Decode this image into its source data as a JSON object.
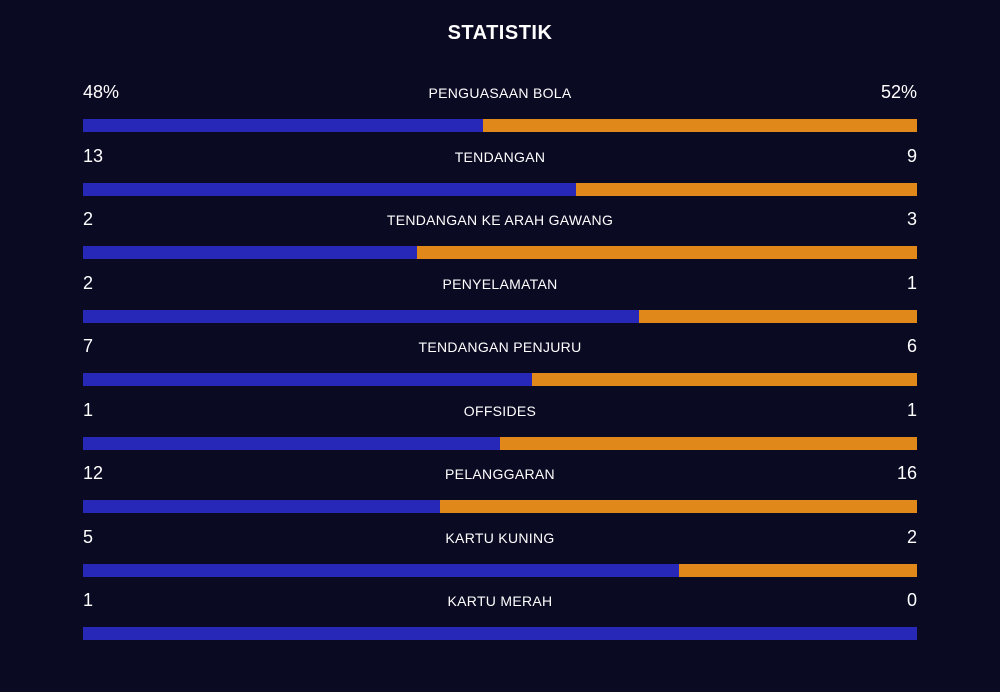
{
  "title": "STATISTIK",
  "colors": {
    "background": "#0a0a23",
    "left_bar": "#2727b8",
    "right_bar": "#e0881a",
    "text": "#ffffff"
  },
  "stats": [
    {
      "label": "PENGUASAAN BOLA",
      "left": "48%",
      "right": "52%",
      "left_share": 0.48
    },
    {
      "label": "TENDANGAN",
      "left": "13",
      "right": "9",
      "left_share": 0.5909
    },
    {
      "label": "TENDANGAN KE ARAH GAWANG",
      "left": "2",
      "right": "3",
      "left_share": 0.4
    },
    {
      "label": "PENYELAMATAN",
      "left": "2",
      "right": "1",
      "left_share": 0.6667
    },
    {
      "label": "TENDANGAN PENJURU",
      "left": "7",
      "right": "6",
      "left_share": 0.5385
    },
    {
      "label": "OFFSIDES",
      "left": "1",
      "right": "1",
      "left_share": 0.5
    },
    {
      "label": "PELANGGARAN",
      "left": "12",
      "right": "16",
      "left_share": 0.4286
    },
    {
      "label": "KARTU KUNING",
      "left": "5",
      "right": "2",
      "left_share": 0.7143
    },
    {
      "label": "KARTU MERAH",
      "left": "1",
      "right": "0",
      "left_share": 1.0
    }
  ]
}
